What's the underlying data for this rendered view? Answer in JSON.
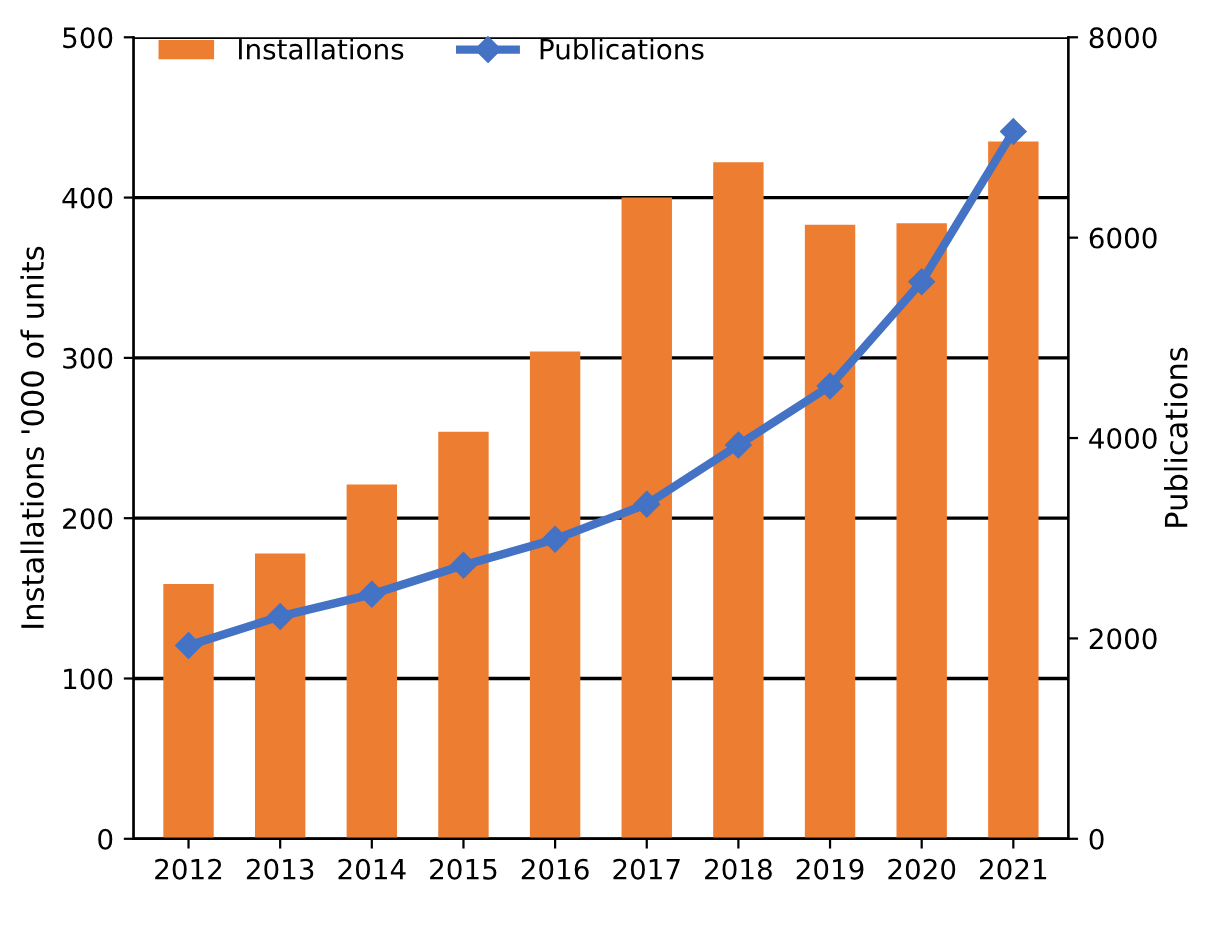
{
  "chart_data": {
    "type": "bar",
    "ylabel": "Installations '000 of units",
    "y2label": "Publications",
    "categories": [
      "2012",
      "2013",
      "2014",
      "2015",
      "2016",
      "2017",
      "2018",
      "2019",
      "2020",
      "2021"
    ],
    "series": [
      {
        "name": "Installations",
        "color": "#ed7d31",
        "values": [
          159,
          178,
          221,
          254,
          304,
          400,
          422,
          383,
          384,
          435
        ]
      },
      {
        "name": "Publications",
        "type": "line",
        "axis": "y2",
        "color": "#4472c4",
        "marker": "diamond",
        "values": [
          1930,
          2220,
          2440,
          2730,
          2990,
          3340,
          3930,
          4520,
          5560,
          7060
        ]
      }
    ],
    "ylim": [
      0,
      500
    ],
    "yticks": [
      0,
      100,
      200,
      300,
      400,
      500
    ],
    "y2lim": [
      0,
      8000
    ],
    "y2ticks": [
      0,
      2000,
      4000,
      6000,
      8000
    ],
    "grid": "y",
    "legend": "top left"
  }
}
